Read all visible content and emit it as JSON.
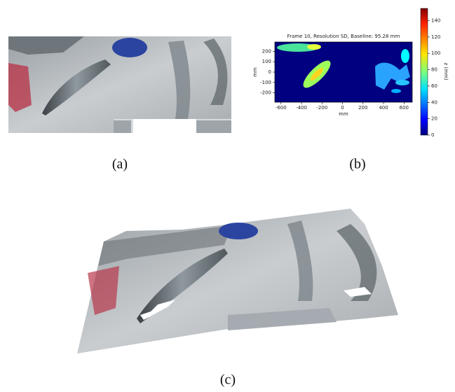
{
  "panels": {
    "a": {
      "label": "(a)"
    },
    "c": {
      "label": "(c)"
    }
  },
  "chart_data": {
    "type": "heatmap",
    "panel_label": "(b)",
    "title": "Frame 10, Resolution SD, Baseline: 95.28 mm",
    "x_label": "mm",
    "y_label": "mm",
    "xlim": [
      -660,
      680
    ],
    "xticks": [
      -600,
      -400,
      -200,
      0,
      200,
      400,
      600
    ],
    "ylim": [
      -290,
      290
    ],
    "yticks": [
      -200,
      -100,
      0,
      100,
      200
    ],
    "colorbar": {
      "label": "z (mm)",
      "lim": [
        0,
        155
      ],
      "ticks": [
        0,
        20,
        40,
        60,
        80,
        100,
        120,
        140
      ],
      "colormap": "jet"
    }
  }
}
